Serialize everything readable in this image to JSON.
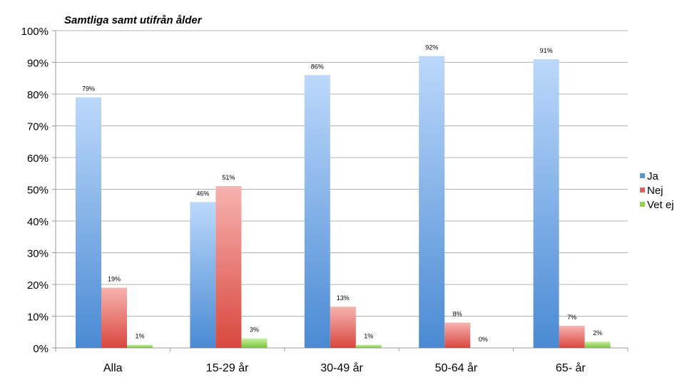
{
  "chart_data": {
    "type": "bar",
    "title": "Samtliga samt utifrån ålder",
    "xlabel": "",
    "ylabel": "",
    "ylim": [
      0,
      100
    ],
    "y_ticks": [
      "0%",
      "10%",
      "20%",
      "30%",
      "40%",
      "50%",
      "60%",
      "70%",
      "80%",
      "90%",
      "100%"
    ],
    "grid": true,
    "legend_position": "right",
    "categories": [
      "Alla",
      "15-29 år",
      "30-49 år",
      "50-64 år",
      "65- år"
    ],
    "series": [
      {
        "name": "Ja",
        "color": "#5a96d6",
        "values": [
          79,
          46,
          86,
          92,
          91
        ],
        "labels": [
          "79%",
          "46%",
          "86%",
          "92%",
          "91%"
        ]
      },
      {
        "name": "Nej",
        "color": "#e0605a",
        "values": [
          19,
          51,
          13,
          8,
          7
        ],
        "labels": [
          "19%",
          "51%",
          "13%",
          "8%",
          "7%"
        ]
      },
      {
        "name": "Vet ej",
        "color": "#8fd14f",
        "values": [
          1,
          3,
          1,
          0,
          2
        ],
        "labels": [
          "1%",
          "3%",
          "1%",
          "0%",
          "2%"
        ]
      }
    ]
  }
}
